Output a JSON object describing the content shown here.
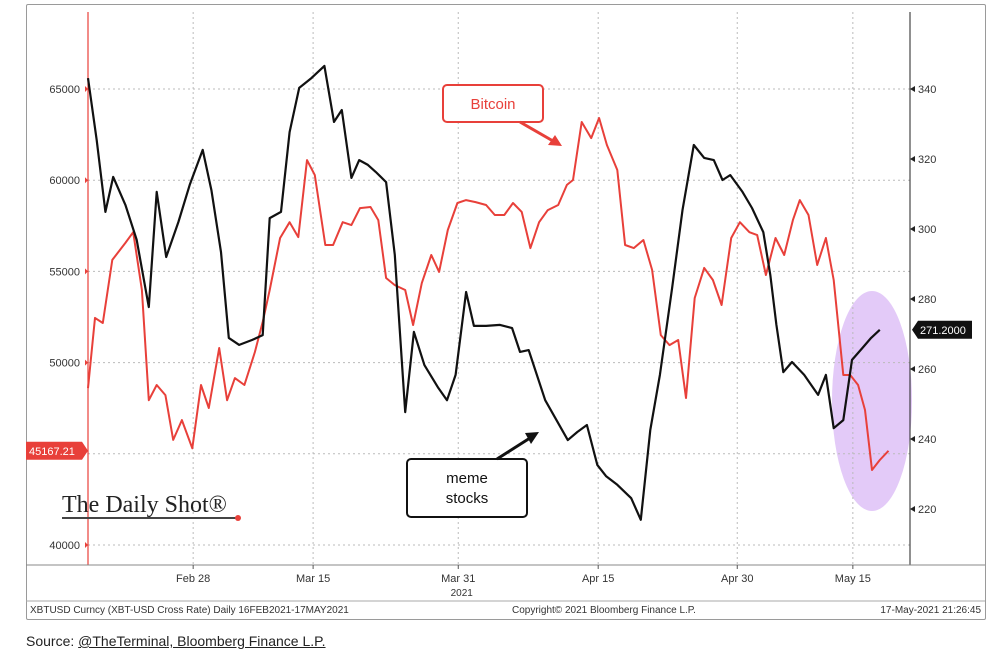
{
  "chart_data": {
    "type": "line",
    "x_start_date": "2021-02-16",
    "x_unit": "days since start",
    "xlim": [
      0,
      94
    ],
    "x_ticks": [
      {
        "day": 12.1,
        "label": "Feb 28"
      },
      {
        "day": 25.9,
        "label": "Mar 15"
      },
      {
        "day": 42.6,
        "label": "Mar 31"
      },
      {
        "day": 58.7,
        "label": "Apr 15"
      },
      {
        "day": 74.7,
        "label": "Apr 30"
      },
      {
        "day": 88.0,
        "label": "May 15"
      }
    ],
    "x_year_label": "2021",
    "left_axis": {
      "ylim": [
        38000,
        68500
      ],
      "ticks": [
        40000,
        50000,
        55000,
        60000,
        65000
      ],
      "last_value_label": "45167.21",
      "color": "#e8403a"
    },
    "right_axis": {
      "ylim": [
        206,
        350
      ],
      "ticks": [
        220,
        240,
        260,
        280,
        300,
        320,
        340
      ],
      "last_value_label": "271.2000",
      "color": "#000000"
    },
    "series": [
      {
        "name": "Bitcoin",
        "axis": "left",
        "color": "#e8403a",
        "points": [
          [
            0,
            48600
          ],
          [
            0.8,
            52450
          ],
          [
            1.7,
            52170
          ],
          [
            2.8,
            55630
          ],
          [
            4.3,
            56560
          ],
          [
            5.2,
            57150
          ],
          [
            6.2,
            53980
          ],
          [
            7,
            47940
          ],
          [
            7.9,
            48770
          ],
          [
            8.9,
            48220
          ],
          [
            9.8,
            45760
          ],
          [
            10.8,
            46850
          ],
          [
            12,
            45300
          ],
          [
            13,
            48770
          ],
          [
            13.9,
            47510
          ],
          [
            15.1,
            50800
          ],
          [
            16,
            47940
          ],
          [
            16.9,
            49150
          ],
          [
            18,
            48770
          ],
          [
            19.2,
            50580
          ],
          [
            20.1,
            52230
          ],
          [
            20.9,
            53980
          ],
          [
            22.1,
            56830
          ],
          [
            23.2,
            57700
          ],
          [
            24.2,
            56880
          ],
          [
            25.2,
            61100
          ],
          [
            26.1,
            60280
          ],
          [
            27.3,
            56450
          ],
          [
            28.2,
            56450
          ],
          [
            29.3,
            57700
          ],
          [
            30.3,
            57540
          ],
          [
            31.3,
            58470
          ],
          [
            32.5,
            58530
          ],
          [
            33.4,
            57810
          ],
          [
            34.3,
            54640
          ],
          [
            35.3,
            54250
          ],
          [
            36.5,
            53980
          ],
          [
            37.4,
            52060
          ],
          [
            38.4,
            54360
          ],
          [
            39.5,
            55900
          ],
          [
            40.4,
            54970
          ],
          [
            41.4,
            57270
          ],
          [
            42.5,
            58750
          ],
          [
            43.5,
            58910
          ],
          [
            44.6,
            58800
          ],
          [
            45.8,
            58640
          ],
          [
            46.8,
            58090
          ],
          [
            47.9,
            58090
          ],
          [
            48.9,
            58750
          ],
          [
            49.9,
            58260
          ],
          [
            50.9,
            56280
          ],
          [
            51.9,
            57700
          ],
          [
            52.9,
            58360
          ],
          [
            54.1,
            58640
          ],
          [
            55.1,
            59740
          ],
          [
            55.8,
            60010
          ],
          [
            56.8,
            63190
          ],
          [
            57.9,
            62310
          ],
          [
            58.8,
            63410
          ],
          [
            59.7,
            61930
          ],
          [
            60.9,
            60560
          ],
          [
            61.8,
            56450
          ],
          [
            62.8,
            56280
          ],
          [
            63.9,
            56720
          ],
          [
            64.9,
            55080
          ],
          [
            65.9,
            51510
          ],
          [
            66.9,
            50960
          ],
          [
            67.9,
            51240
          ],
          [
            68.8,
            48060
          ],
          [
            69.8,
            53540
          ],
          [
            70.9,
            55190
          ],
          [
            71.9,
            54530
          ],
          [
            72.9,
            53160
          ],
          [
            74,
            56830
          ],
          [
            75,
            57700
          ],
          [
            76.1,
            57150
          ],
          [
            77,
            56990
          ],
          [
            78,
            54800
          ],
          [
            79.1,
            56830
          ],
          [
            80.1,
            55900
          ],
          [
            81.1,
            57810
          ],
          [
            81.9,
            58910
          ],
          [
            82.9,
            58090
          ],
          [
            83.9,
            55350
          ],
          [
            84.9,
            56830
          ],
          [
            85.8,
            54530
          ],
          [
            86.9,
            49320
          ],
          [
            87.7,
            49320
          ],
          [
            88.6,
            48770
          ],
          [
            89.4,
            47400
          ],
          [
            90.2,
            44110
          ],
          [
            91.1,
            44660
          ],
          [
            92.1,
            45167
          ]
        ]
      },
      {
        "name": "meme stocks",
        "axis": "right",
        "color": "#111111",
        "points": [
          [
            0,
            343.1
          ],
          [
            1,
            325.4
          ],
          [
            2,
            304.9
          ],
          [
            2.9,
            314.9
          ],
          [
            4.3,
            306.9
          ],
          [
            5.6,
            296.9
          ],
          [
            7,
            277.7
          ],
          [
            7.9,
            310.6
          ],
          [
            9,
            292
          ],
          [
            10.4,
            302
          ],
          [
            11.7,
            312.6
          ],
          [
            13.2,
            322.6
          ],
          [
            14.2,
            311.1
          ],
          [
            15.3,
            293.4
          ],
          [
            16.2,
            268.9
          ],
          [
            17.4,
            266.9
          ],
          [
            18.9,
            268.3
          ],
          [
            20.1,
            269.7
          ],
          [
            20.9,
            303.1
          ],
          [
            22.2,
            304.9
          ],
          [
            23.2,
            327.7
          ],
          [
            24.3,
            340.3
          ],
          [
            25.7,
            343.1
          ],
          [
            27.2,
            346.6
          ],
          [
            28.3,
            330.6
          ],
          [
            29.2,
            334
          ],
          [
            30.3,
            314.6
          ],
          [
            31.2,
            319.7
          ],
          [
            32.2,
            318.3
          ],
          [
            33.1,
            316.3
          ],
          [
            34.3,
            313.4
          ],
          [
            35.3,
            292.6
          ],
          [
            36.5,
            247.7
          ],
          [
            37.5,
            270.6
          ],
          [
            38.7,
            261.1
          ],
          [
            40.3,
            254.6
          ],
          [
            41.3,
            251.1
          ],
          [
            42.3,
            258.3
          ],
          [
            43.5,
            282
          ],
          [
            44.4,
            272.3
          ],
          [
            45.8,
            272.3
          ],
          [
            47.4,
            272.6
          ],
          [
            48.8,
            271.7
          ],
          [
            49.7,
            264.9
          ],
          [
            50.7,
            265.4
          ],
          [
            52.6,
            251.1
          ],
          [
            55.2,
            239.7
          ],
          [
            56.3,
            242
          ],
          [
            57.4,
            244
          ],
          [
            58.6,
            232.6
          ],
          [
            59.6,
            229.4
          ],
          [
            60.9,
            226.9
          ],
          [
            62.5,
            223.1
          ],
          [
            63.6,
            216.9
          ],
          [
            64.7,
            242.6
          ],
          [
            65.8,
            258.3
          ],
          [
            67.2,
            283.1
          ],
          [
            68.4,
            305.4
          ],
          [
            69.7,
            324
          ],
          [
            70.9,
            320.3
          ],
          [
            72,
            319.7
          ],
          [
            73,
            314
          ],
          [
            73.9,
            315.4
          ],
          [
            75.3,
            310.6
          ],
          [
            76.4,
            306
          ],
          [
            77.7,
            299.1
          ],
          [
            78.5,
            286.9
          ],
          [
            79.2,
            272.6
          ],
          [
            80,
            259.1
          ],
          [
            81,
            262
          ],
          [
            82.4,
            258.3
          ],
          [
            84,
            252.6
          ],
          [
            84.9,
            258.3
          ],
          [
            85.8,
            243.1
          ],
          [
            86.9,
            245.4
          ],
          [
            87.9,
            262.6
          ],
          [
            89.1,
            266
          ],
          [
            90.1,
            268.9
          ],
          [
            91.1,
            271.2
          ]
        ]
      }
    ],
    "annotations": {
      "bitcoin_label": "Bitcoin",
      "meme_label_line1": "meme",
      "meme_label_line2": "stocks",
      "highlight_color": "#d9b8f5"
    },
    "footer": {
      "left": "XBTUSD Curncy (XBT-USD Cross Rate)  Daily 16FEB2021-17MAY2021",
      "center": "Copyright© 2021 Bloomberg Finance L.P.",
      "right": "17-May-2021 21:26:45"
    },
    "logo": "The Daily Shot®"
  },
  "source": {
    "prefix": "Source: ",
    "link": "@TheTerminal, Bloomberg Finance L.P."
  }
}
